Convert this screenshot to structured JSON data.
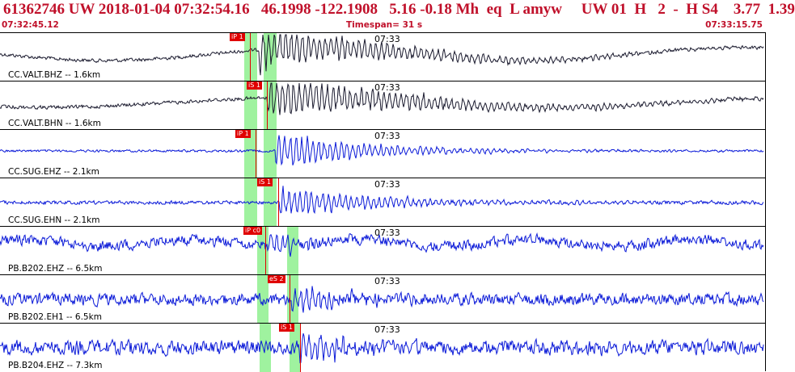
{
  "header": {
    "title": "61362746 UW 2018-01-04 07:32:54.16   46.1998 -122.1908   5.16 -0.18 Mh  eq  L amyw     UW 01  H   2  -  H S4    3.77  1.39",
    "start_time": "07:32:45.12",
    "timespan": "Timespan=  31 s",
    "end_time": "07:33:15.75"
  },
  "colors": {
    "title": "#c0102a",
    "pick": "#e00000",
    "band": "#8ef08e",
    "trace_black": "#1a1a2e",
    "trace_blue": "#0b1ad8"
  },
  "panels": [
    {
      "label": "CC.VALT.BHZ -- 1.6km",
      "tick": "07:33",
      "pick": "iP 1",
      "trace_color": "black"
    },
    {
      "label": "CC.VALT.BHN -- 1.6km",
      "tick": "07:33",
      "pick": "iS 1",
      "trace_color": "black"
    },
    {
      "label": "CC.SUG.EHZ -- 2.1km",
      "tick": "07:33",
      "pick": "iP 1",
      "trace_color": "blue"
    },
    {
      "label": "CC.SUG.EHN -- 2.1km",
      "tick": "07:33",
      "pick": "iS 1",
      "trace_color": "blue"
    },
    {
      "label": "PB.B202.EHZ -- 6.5km",
      "tick": "07:33",
      "pick": "iP c0",
      "trace_color": "blue"
    },
    {
      "label": "PB.B202.EH1 -- 6.5km",
      "tick": "07:33",
      "pick": "eS 2",
      "trace_color": "blue"
    },
    {
      "label": "PB.B204.EHZ -- 7.3km",
      "tick": "07:33",
      "pick": "iS 1",
      "trace_color": "blue"
    }
  ]
}
